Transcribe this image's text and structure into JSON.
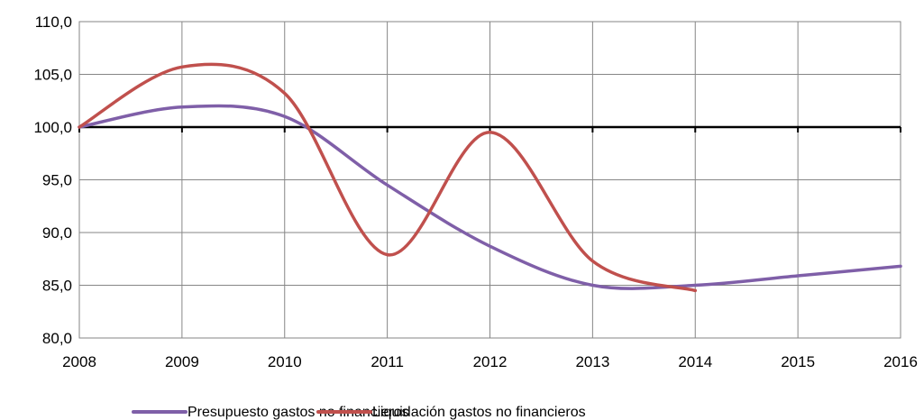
{
  "chart_data": {
    "type": "line",
    "title": "",
    "xlabel": "",
    "ylabel": "",
    "x": [
      2008,
      2009,
      2010,
      2011,
      2012,
      2013,
      2014,
      2015,
      2016
    ],
    "xlim": [
      2008,
      2016
    ],
    "ylim": [
      80,
      110
    ],
    "y_ticks": [
      80,
      85,
      90,
      95,
      100,
      105,
      110
    ],
    "y_tick_labels": [
      "80,0",
      "85,0",
      "90,0",
      "95,0",
      "100,0",
      "105,0",
      "110,0"
    ],
    "x_tick_labels": [
      "2008",
      "2009",
      "2010",
      "2011",
      "2012",
      "2013",
      "2014",
      "2015",
      "2016"
    ],
    "grid": true,
    "reference_line": 100,
    "smooth": true,
    "legend_position": "bottom",
    "series": [
      {
        "name": "Presupuesto gastos no financieros",
        "color": "#7f5fa8",
        "values": [
          100.0,
          101.9,
          101.0,
          94.5,
          88.7,
          85.0,
          85.0,
          85.9,
          86.8
        ]
      },
      {
        "name": "Liquidación gastos no financieros",
        "color": "#c0504d",
        "values": [
          100.0,
          105.7,
          103.2,
          87.9,
          99.5,
          87.3,
          84.5,
          null,
          null
        ]
      }
    ]
  }
}
